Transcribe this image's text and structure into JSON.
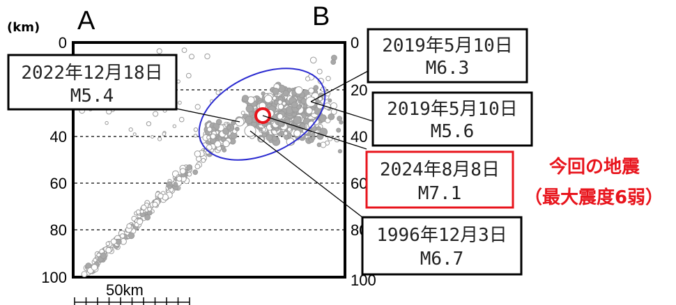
{
  "section": {
    "depth_unit": "(km)",
    "end_a": "A",
    "end_b": "B",
    "depth_ticks_left": [
      "0",
      "40",
      "60",
      "80",
      "100"
    ],
    "depth_ticks_right": [
      "0",
      "20",
      "40",
      "60",
      "80",
      "100"
    ],
    "scale_label": "50km"
  },
  "events": [
    {
      "date": "2022年12月18日",
      "mag": "M5.4"
    },
    {
      "date": "2019年5月10日",
      "mag": "M6.3"
    },
    {
      "date": "2019年5月10日",
      "mag": "M5.6"
    },
    {
      "date": "2024年8月8日",
      "mag": "M7.1"
    },
    {
      "date": "1996年12月3日",
      "mag": "M6.7"
    }
  ],
  "note": {
    "line1": "今回の地震",
    "line2": "（最大震度6弱）"
  },
  "colors": {
    "main_shock": "#e8141c",
    "ellipse": "#2a2ad0",
    "hypocenter": "#a0a0a0"
  }
}
